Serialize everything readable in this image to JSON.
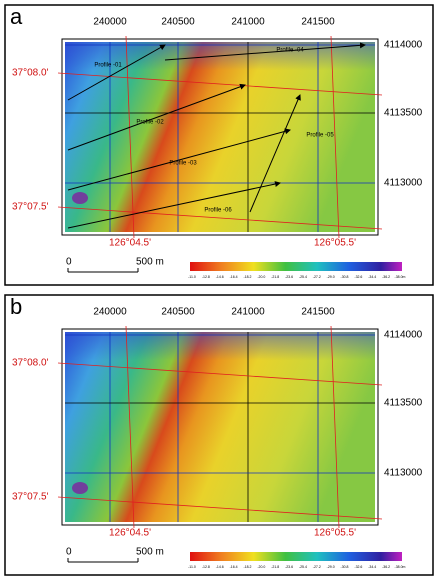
{
  "panels": [
    {
      "label": "a",
      "easting": [
        "240000",
        "240500",
        "241000",
        "241500"
      ],
      "northing": [
        "4114000",
        "4113500",
        "4113000"
      ],
      "latitude": [
        "37°08.0'",
        "37°07.5'"
      ],
      "longitude": [
        "126°04.5'",
        "126°05.5'"
      ],
      "scale": [
        "0",
        "500 m"
      ],
      "colorbar": [
        "-11.0",
        "-12.8",
        "-14.6",
        "-16.4",
        "-18.2",
        "-20.0",
        "-21.8",
        "-23.6",
        "-25.4",
        "-27.2",
        "-29.0",
        "-30.8",
        "-32.6",
        "-34.4",
        "-36.2",
        "-38.0m"
      ],
      "profiles": [
        "Profile -01",
        "Profile -02",
        "Profile -03",
        "Profile -04",
        "Profile -05",
        "Profile -06"
      ]
    },
    {
      "label": "b",
      "easting": [
        "240000",
        "240500",
        "241000",
        "241500"
      ],
      "northing": [
        "4114000",
        "4113500",
        "4113000"
      ],
      "latitude": [
        "37°08.0'",
        "37°07.5'"
      ],
      "longitude": [
        "126°04.5'",
        "126°05.5'"
      ],
      "scale": [
        "0",
        "500 m"
      ],
      "colorbar": [
        "-11.0",
        "-12.8",
        "-14.6",
        "-16.4",
        "-18.2",
        "-20.0",
        "-21.8",
        "-23.6",
        "-25.4",
        "-27.2",
        "-29.0",
        "-30.8",
        "-32.6",
        "-34.4",
        "-36.2",
        "-38.0m"
      ]
    }
  ]
}
